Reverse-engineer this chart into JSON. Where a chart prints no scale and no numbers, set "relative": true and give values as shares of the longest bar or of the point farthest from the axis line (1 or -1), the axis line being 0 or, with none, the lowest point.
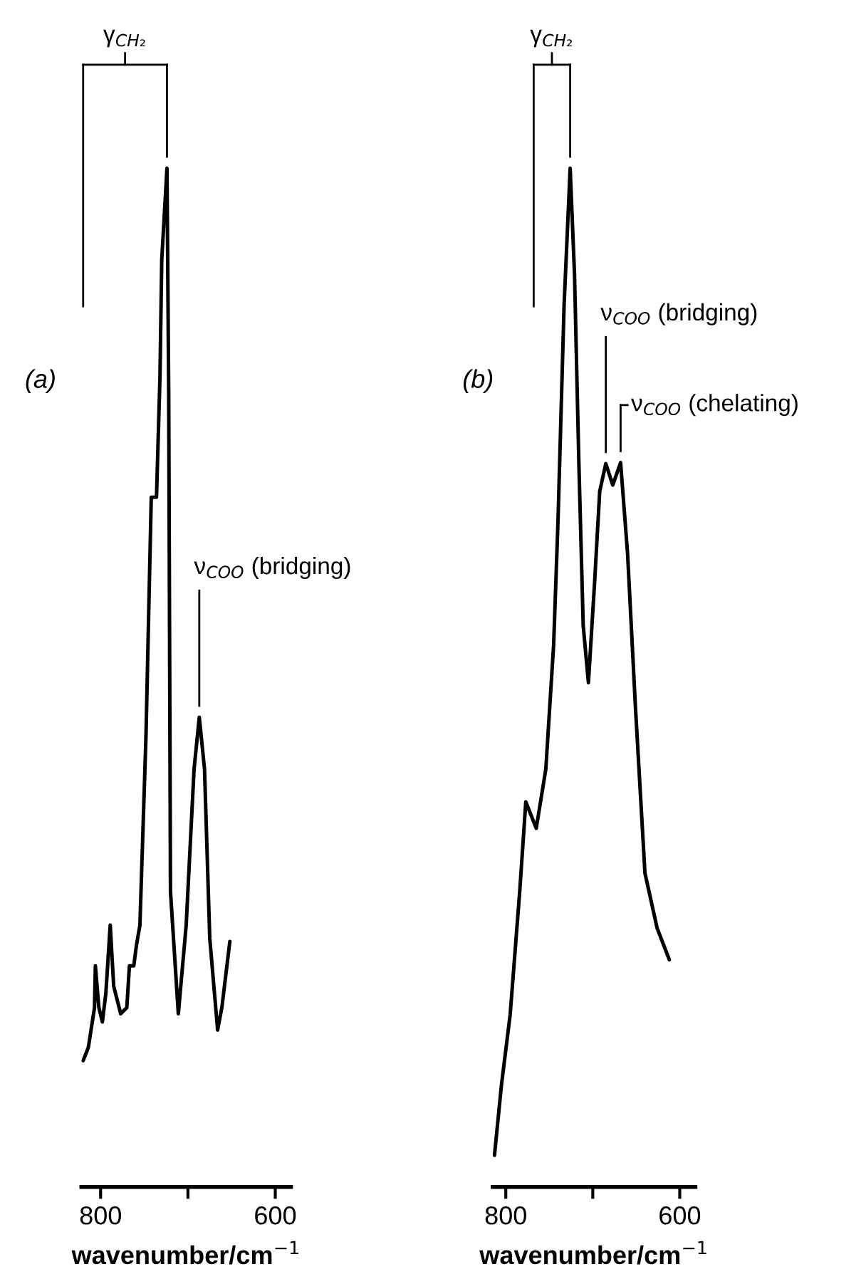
{
  "chart_data": [
    {
      "type": "line",
      "title": "(a)",
      "xlabel": "wavenumber/cm$^{−1}$",
      "relative": true,
      "grid": false,
      "legend": false,
      "marker": "none",
      "line_style": "solid",
      "tick_labels": "x",
      "xlim": [
        822,
        582
      ],
      "xticks": [
        800,
        {
          "value": 700,
          "label": null
        },
        600
      ],
      "series": [
        {
          "color": "#000000",
          "x": [
            820,
            814,
            807,
            806,
            802,
            798,
            794,
            789,
            785,
            777,
            770,
            767,
            762,
            759,
            755,
            748,
            742,
            736,
            732,
            730,
            724,
            722,
            720,
            711,
            702,
            693,
            687,
            681,
            675,
            666,
            661,
            652
          ],
          "values": [
            0.124,
            0.137,
            0.176,
            0.217,
            0.176,
            0.162,
            0.19,
            0.257,
            0.197,
            0.17,
            0.176,
            0.217,
            0.217,
            0.237,
            0.257,
            0.444,
            0.677,
            0.677,
            0.796,
            0.91,
            1,
            0.777,
            0.29,
            0.17,
            0.257,
            0.41,
            0.461,
            0.41,
            0.244,
            0.154,
            0.177,
            0.241
          ]
        }
      ],
      "annotations": [
        {
          "text": "γ$_{CH₂}$",
          "x": 724,
          "y": 1
        },
        {
          "text": "ν$_{COO}$ (bridging)",
          "x": 687,
          "y": 0.461
        }
      ]
    },
    {
      "type": "line",
      "title": "(b)",
      "xlabel": "wavenumber/cm$^{−1}$",
      "relative": true,
      "grid": false,
      "legend": false,
      "marker": "none",
      "line_style": "solid",
      "tick_labels": "x",
      "xlim": [
        815,
        582
      ],
      "xticks": [
        800,
        {
          "value": 700,
          "label": null
        },
        600
      ],
      "series": [
        {
          "color": "#000000",
          "x": [
            813,
            805,
            795,
            784,
            777,
            765,
            754,
            745,
            740,
            733,
            726,
            721,
            716,
            711,
            705,
            698,
            692,
            685,
            677,
            668,
            660,
            651,
            640,
            626,
            612
          ],
          "values": [
            0.031,
            0.1,
            0.169,
            0.29,
            0.378,
            0.352,
            0.41,
            0.532,
            0.653,
            0.865,
            1,
            0.896,
            0.711,
            0.551,
            0.495,
            0.592,
            0.683,
            0.71,
            0.689,
            0.711,
            0.622,
            0.472,
            0.308,
            0.254,
            0.223
          ]
        }
      ],
      "annotations": [
        {
          "text": "γ$_{CH₂}$",
          "x": 726,
          "y": 1
        },
        {
          "text": "ν$_{COO}$ (bridging)",
          "x": 685,
          "y": 0.71
        },
        {
          "text": "ν$_{COO}$ (chelating)",
          "x": 668,
          "y": 0.711
        }
      ]
    }
  ]
}
